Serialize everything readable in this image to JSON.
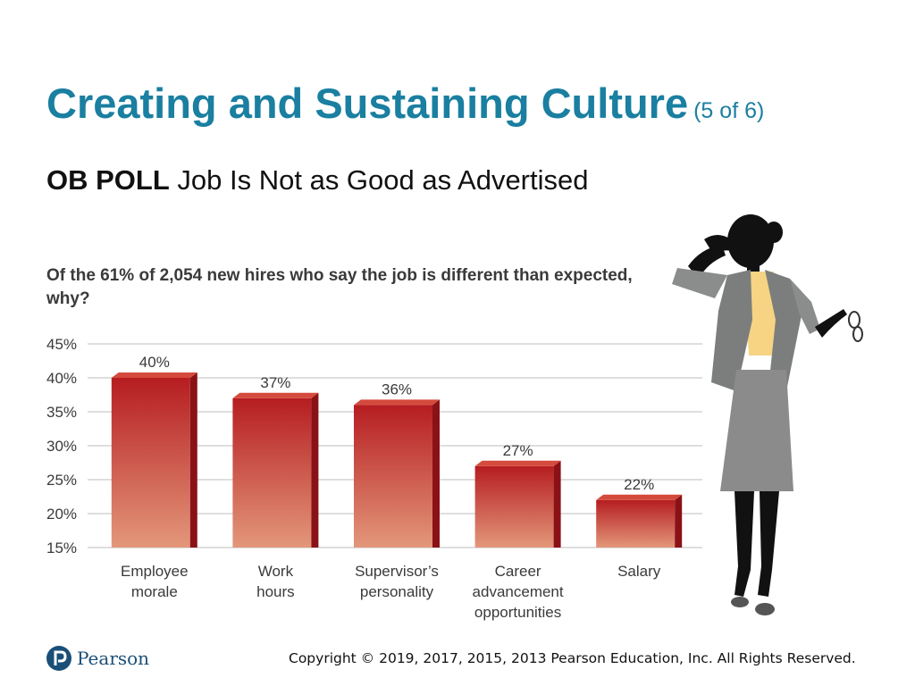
{
  "slide": {
    "title": "Creating and Sustaining Culture",
    "title_suffix": "(5 of 6)",
    "poll_label": "OB POLL",
    "poll_title": "Job Is Not as Good as Advertised"
  },
  "chart_data": {
    "type": "bar",
    "title": "Of the 61% of 2,054 new hires who say the job is different than expected, why?",
    "categories": [
      [
        "Employee",
        "morale"
      ],
      [
        "Work",
        "hours"
      ],
      [
        "Supervisor’s",
        "personality"
      ],
      [
        "Career",
        "advancement",
        "opportunities"
      ],
      [
        "Salary"
      ]
    ],
    "values": [
      40,
      37,
      36,
      27,
      22
    ],
    "value_labels": [
      "40%",
      "37%",
      "36%",
      "27%",
      "22%"
    ],
    "ylim": [
      15,
      45
    ],
    "yticks": [
      45,
      40,
      35,
      30,
      25,
      20,
      15
    ],
    "ytick_labels": [
      "45%",
      "40%",
      "35%",
      "30%",
      "25%",
      "20%",
      "15%"
    ],
    "grid": true,
    "bar_colors": {
      "top": "#b61d21",
      "bottom": "#e3977a",
      "side": "#8a1216",
      "cap": "#d44a3c"
    }
  },
  "footer": {
    "logo_text": "Pearson",
    "copyright": "Copyright © 2019, 2017, 2015, 2013 Pearson Education, Inc. All Rights Reserved."
  },
  "colors": {
    "title": "#1a7fa0",
    "logo": "#1a4f78"
  }
}
